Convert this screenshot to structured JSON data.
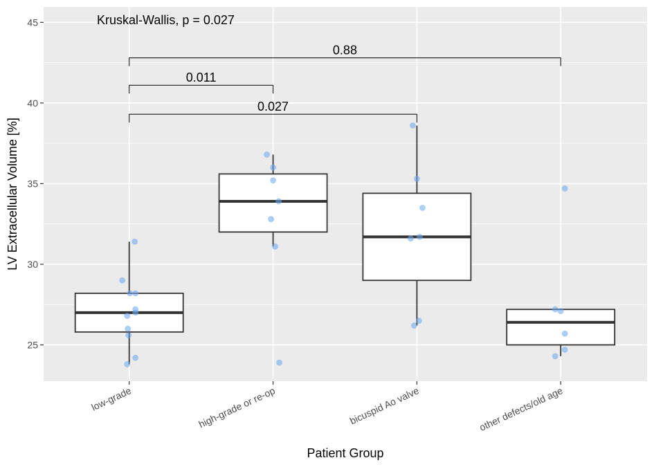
{
  "chart_data": {
    "type": "box",
    "xlabel": "Patient Group",
    "ylabel": "LV Extracellular Volume [%]",
    "ylim": [
      22.2,
      46.1
    ],
    "yticks": [
      25,
      30,
      35,
      40,
      45
    ],
    "categories": [
      "low-grade",
      "high-grade or re-op",
      "bicuspid Ao valve",
      "other defects/old age"
    ],
    "boxes": [
      {
        "category": "low-grade",
        "lower_whisker": 23.8,
        "q1": 25.8,
        "median": 27.0,
        "q3": 28.2,
        "upper_whisker": 31.4
      },
      {
        "category": "high-grade or re-op",
        "lower_whisker": 31.1,
        "q1": 32.0,
        "median": 33.9,
        "q3": 35.6,
        "upper_whisker": 36.8
      },
      {
        "category": "bicuspid Ao valve",
        "lower_whisker": 26.2,
        "q1": 29.0,
        "median": 31.7,
        "q3": 34.4,
        "upper_whisker": 38.6
      },
      {
        "category": "other defects/old age",
        "lower_whisker": 24.3,
        "q1": 25.0,
        "median": 26.4,
        "q3": 27.2,
        "upper_whisker": 27.2
      }
    ],
    "points": [
      {
        "category": "low-grade",
        "values": [
          23.8,
          24.2,
          25.6,
          26.0,
          26.8,
          27.0,
          27.2,
          28.2,
          28.2,
          29.0,
          31.4
        ]
      },
      {
        "category": "high-grade or re-op",
        "values": [
          23.9,
          31.1,
          32.8,
          33.9,
          35.2,
          36.0,
          36.8
        ]
      },
      {
        "category": "bicuspid Ao valve",
        "values": [
          26.2,
          26.5,
          31.6,
          31.7,
          33.5,
          35.3,
          38.6
        ]
      },
      {
        "category": "other defects/old age",
        "values": [
          24.3,
          24.7,
          25.7,
          27.1,
          27.2,
          34.7
        ]
      }
    ],
    "comparisons": [
      {
        "group1": "low-grade",
        "group2": "other defects/old age",
        "label": "0.88",
        "y": 42.8
      },
      {
        "group1": "low-grade",
        "group2": "high-grade or re-op",
        "label": "0.011",
        "y": 41.1
      },
      {
        "group1": "low-grade",
        "group2": "bicuspid Ao valve",
        "label": "0.027",
        "y": 39.3
      }
    ],
    "annotation": "Kruskal-Wallis, p = 0.027",
    "grid": true,
    "colors": {
      "panel": "#ebebeb",
      "grid": "#ffffff",
      "box_fill": "#ffffff",
      "box_stroke": "#333333",
      "point": "#6aa8ef"
    }
  }
}
